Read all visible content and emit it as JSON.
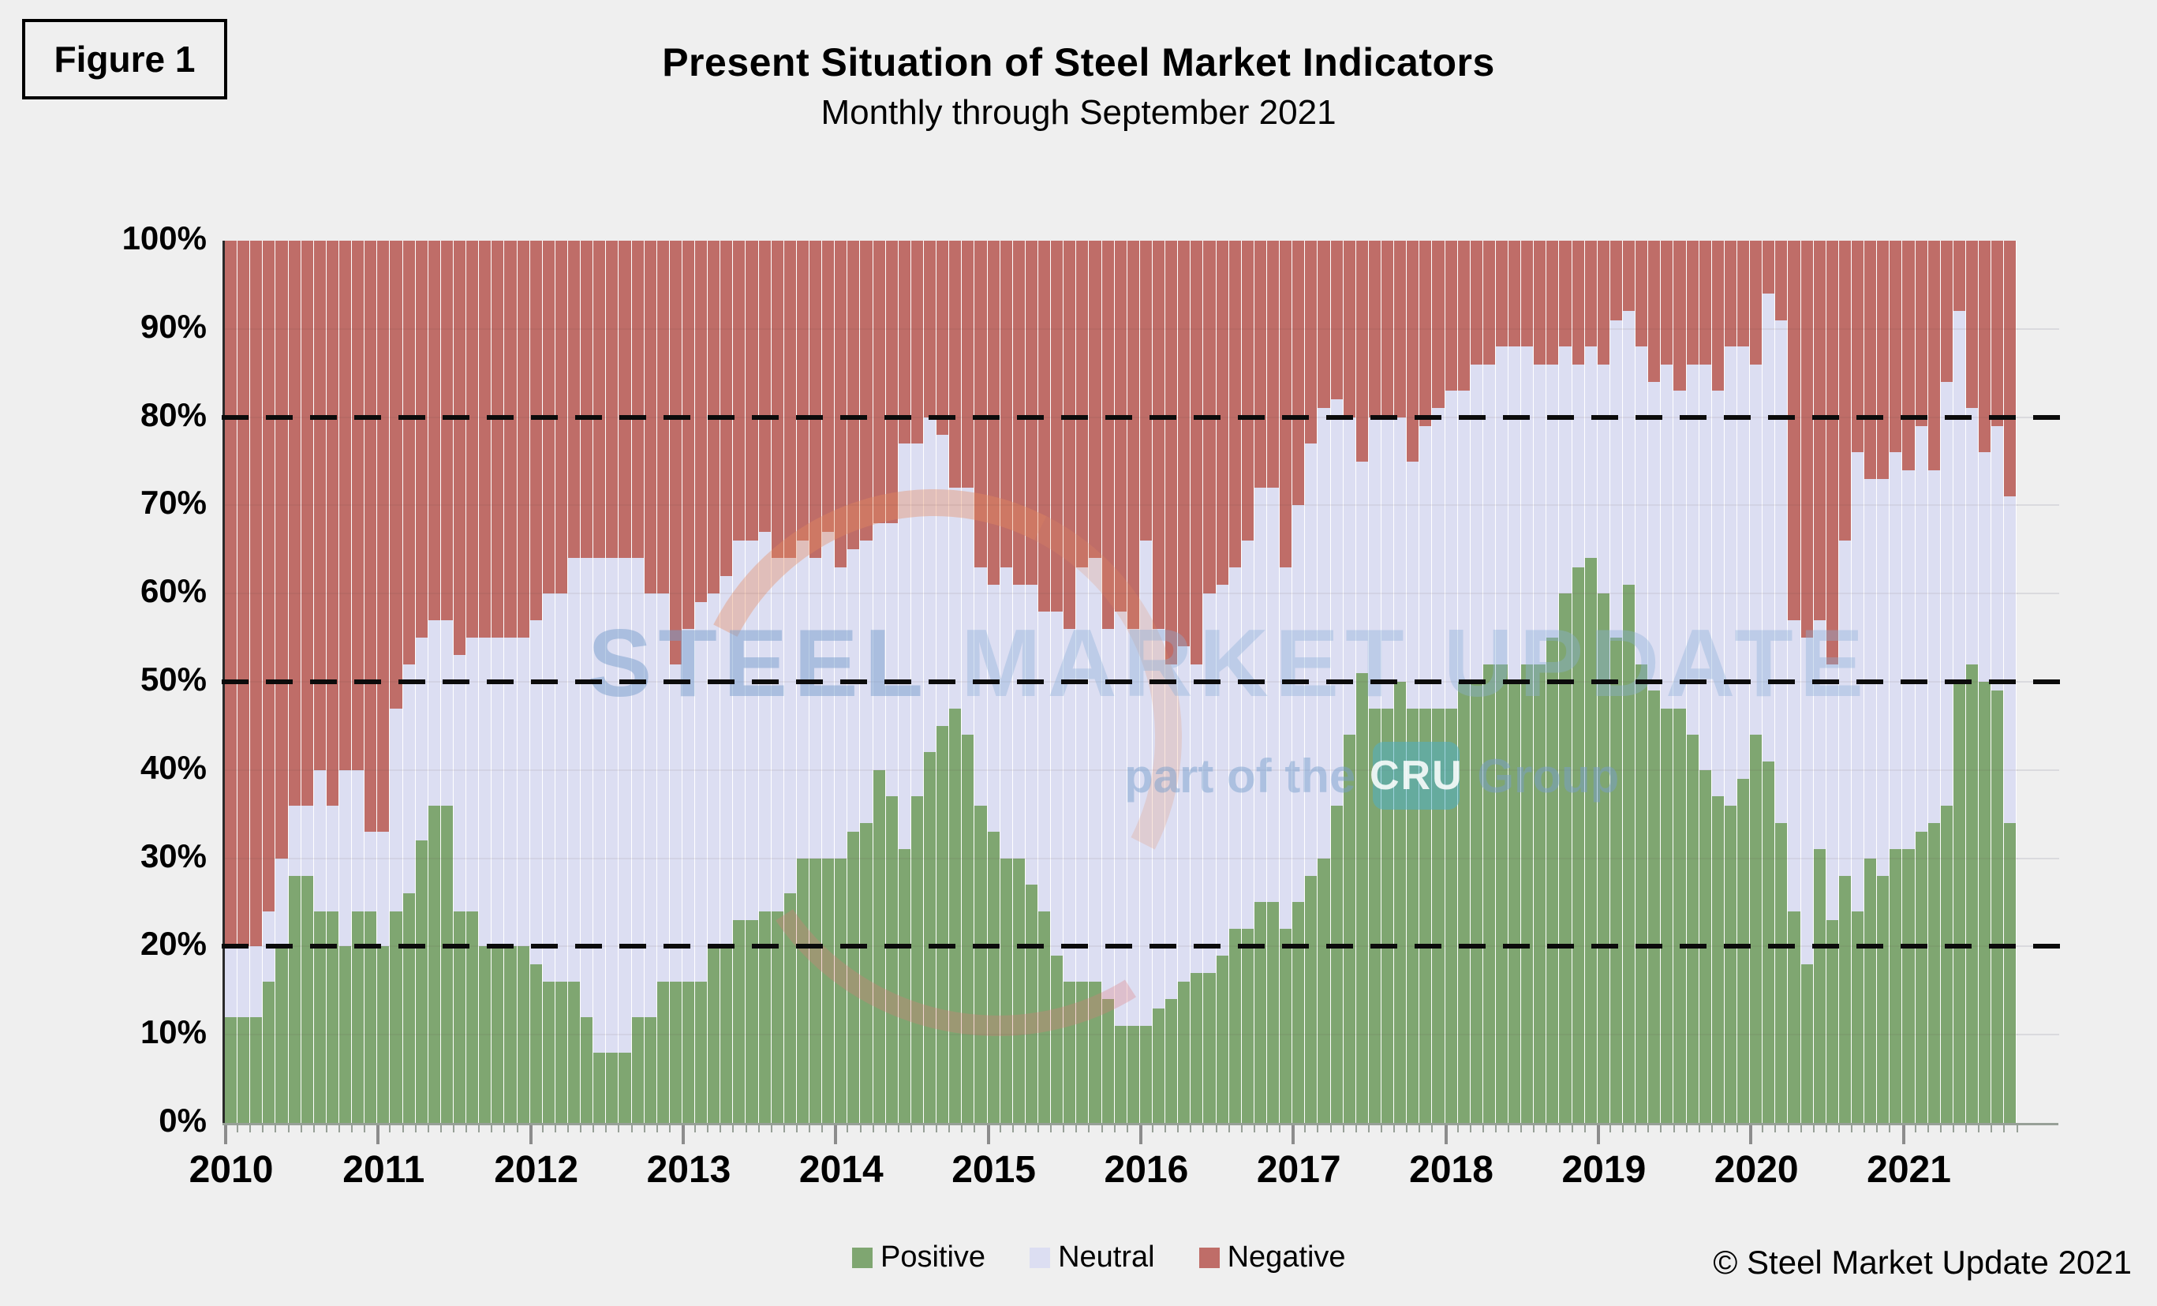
{
  "figure_label": "Figure 1",
  "title": "Present Situation of Steel Market Indicators",
  "subtitle": "Monthly through September 2021",
  "copyright": "© Steel Market Update 2021",
  "watermark": {
    "line1_a": "STEEL",
    "line1_b": " MARKET UPDATE",
    "line2_prefix": "part of the",
    "line2_badge": "CRU",
    "line2_suffix": "Group"
  },
  "legend": [
    {
      "label": "Positive",
      "color": "#7fa671"
    },
    {
      "label": "Neutral",
      "color": "#dcdef2"
    },
    {
      "label": "Negative",
      "color": "#bf6d68"
    }
  ],
  "axes": {
    "y_ticks": [
      "0%",
      "10%",
      "20%",
      "30%",
      "40%",
      "50%",
      "60%",
      "70%",
      "80%",
      "90%",
      "100%"
    ],
    "x_ticks": [
      "2010",
      "2011",
      "2012",
      "2013",
      "2014",
      "2015",
      "2016",
      "2017",
      "2018",
      "2019",
      "2020",
      "2021"
    ]
  },
  "chart_data": {
    "type": "bar",
    "stacked": true,
    "stack_total": 100,
    "title": "Present Situation of Steel Market Indicators",
    "subtitle": "Monthly through September 2021",
    "ylabel": "",
    "ylim": [
      0,
      100
    ],
    "grid": "horizontal, every 10%",
    "dashed_reference_lines": [
      20,
      50,
      80
    ],
    "legend_position": "bottom",
    "categories": [
      "2010-01",
      "2010-02",
      "2010-03",
      "2010-04",
      "2010-05",
      "2010-06",
      "2010-07",
      "2010-08",
      "2010-09",
      "2010-10",
      "2010-11",
      "2010-12",
      "2011-01",
      "2011-02",
      "2011-03",
      "2011-04",
      "2011-05",
      "2011-06",
      "2011-07",
      "2011-08",
      "2011-09",
      "2011-10",
      "2011-11",
      "2011-12",
      "2012-01",
      "2012-02",
      "2012-03",
      "2012-04",
      "2012-05",
      "2012-06",
      "2012-07",
      "2012-08",
      "2012-09",
      "2012-10",
      "2012-11",
      "2012-12",
      "2013-01",
      "2013-02",
      "2013-03",
      "2013-04",
      "2013-05",
      "2013-06",
      "2013-07",
      "2013-08",
      "2013-09",
      "2013-10",
      "2013-11",
      "2013-12",
      "2014-01",
      "2014-02",
      "2014-03",
      "2014-04",
      "2014-05",
      "2014-06",
      "2014-07",
      "2014-08",
      "2014-09",
      "2014-10",
      "2014-11",
      "2014-12",
      "2015-01",
      "2015-02",
      "2015-03",
      "2015-04",
      "2015-05",
      "2015-06",
      "2015-07",
      "2015-08",
      "2015-09",
      "2015-10",
      "2015-11",
      "2015-12",
      "2016-01",
      "2016-02",
      "2016-03",
      "2016-04",
      "2016-05",
      "2016-06",
      "2016-07",
      "2016-08",
      "2016-09",
      "2016-10",
      "2016-11",
      "2016-12",
      "2017-01",
      "2017-02",
      "2017-03",
      "2017-04",
      "2017-05",
      "2017-06",
      "2017-07",
      "2017-08",
      "2017-09",
      "2017-10",
      "2017-11",
      "2017-12",
      "2018-01",
      "2018-02",
      "2018-03",
      "2018-04",
      "2018-05",
      "2018-06",
      "2018-07",
      "2018-08",
      "2018-09",
      "2018-10",
      "2018-11",
      "2018-12",
      "2019-01",
      "2019-02",
      "2019-03",
      "2019-04",
      "2019-05",
      "2019-06",
      "2019-07",
      "2019-08",
      "2019-09",
      "2019-10",
      "2019-11",
      "2019-12",
      "2020-01",
      "2020-02",
      "2020-03",
      "2020-04",
      "2020-05",
      "2020-06",
      "2020-07",
      "2020-08",
      "2020-09",
      "2020-10",
      "2020-11",
      "2020-12",
      "2021-01",
      "2021-02",
      "2021-03",
      "2021-04",
      "2021-05",
      "2021-06",
      "2021-07",
      "2021-08",
      "2021-09"
    ],
    "series": [
      {
        "name": "Positive",
        "color": "#7fa671",
        "values": [
          12,
          12,
          12,
          16,
          20,
          28,
          28,
          24,
          24,
          20,
          24,
          24,
          20,
          24,
          26,
          32,
          36,
          36,
          24,
          24,
          20,
          20,
          20,
          20,
          18,
          16,
          16,
          16,
          12,
          8,
          8,
          8,
          12,
          12,
          16,
          16,
          16,
          16,
          20,
          20,
          23,
          23,
          24,
          24,
          26,
          30,
          30,
          30,
          30,
          33,
          34,
          40,
          37,
          31,
          37,
          42,
          45,
          47,
          44,
          36,
          33,
          30,
          30,
          27,
          24,
          19,
          16,
          16,
          16,
          14,
          11,
          11,
          11,
          13,
          14,
          16,
          17,
          17,
          19,
          22,
          22,
          25,
          25,
          22,
          25,
          28,
          30,
          36,
          44,
          51,
          47,
          47,
          50,
          47,
          47,
          47,
          47,
          50,
          50,
          52,
          52,
          50,
          52,
          52,
          55,
          60,
          63,
          64,
          60,
          55,
          61,
          52,
          49,
          47,
          47,
          44,
          40,
          37,
          36,
          39,
          44,
          41,
          34,
          24,
          18,
          31,
          23,
          28,
          24,
          30,
          28,
          31,
          31,
          33,
          34,
          36,
          50,
          52,
          50,
          49,
          34
        ]
      },
      {
        "name": "Neutral",
        "color": "#dcdef2",
        "values": [
          8,
          8,
          8,
          8,
          10,
          8,
          8,
          16,
          12,
          20,
          16,
          9,
          13,
          23,
          26,
          23,
          21,
          21,
          29,
          31,
          35,
          35,
          35,
          35,
          39,
          44,
          44,
          48,
          52,
          56,
          56,
          56,
          52,
          48,
          44,
          36,
          40,
          43,
          40,
          42,
          43,
          43,
          43,
          40,
          38,
          36,
          34,
          37,
          33,
          32,
          32,
          28,
          31,
          46,
          40,
          38,
          33,
          25,
          28,
          27,
          28,
          33,
          31,
          34,
          34,
          39,
          40,
          47,
          48,
          42,
          47,
          45,
          55,
          43,
          38,
          38,
          35,
          43,
          42,
          41,
          44,
          47,
          47,
          41,
          45,
          49,
          51,
          46,
          36,
          24,
          33,
          33,
          30,
          28,
          32,
          34,
          36,
          33,
          36,
          34,
          36,
          38,
          36,
          34,
          31,
          28,
          23,
          24,
          26,
          36,
          31,
          36,
          35,
          39,
          36,
          42,
          46,
          46,
          52,
          49,
          42,
          53,
          57,
          33,
          37,
          26,
          29,
          38,
          52,
          43,
          45,
          45,
          43,
          46,
          40,
          48,
          42,
          29,
          26,
          30,
          37
        ]
      },
      {
        "name": "Negative",
        "color": "#bf6d68",
        "values": [
          80,
          80,
          80,
          76,
          70,
          64,
          64,
          60,
          64,
          60,
          60,
          67,
          67,
          53,
          48,
          45,
          43,
          43,
          47,
          45,
          45,
          45,
          45,
          45,
          43,
          40,
          40,
          36,
          36,
          36,
          36,
          36,
          36,
          40,
          40,
          48,
          44,
          41,
          40,
          38,
          34,
          34,
          33,
          36,
          36,
          34,
          36,
          33,
          37,
          35,
          34,
          32,
          32,
          23,
          23,
          20,
          22,
          28,
          28,
          37,
          39,
          37,
          39,
          39,
          42,
          42,
          44,
          37,
          36,
          44,
          42,
          44,
          34,
          44,
          48,
          46,
          48,
          40,
          39,
          37,
          34,
          28,
          28,
          37,
          30,
          23,
          19,
          18,
          20,
          25,
          20,
          20,
          20,
          25,
          21,
          19,
          17,
          17,
          14,
          14,
          12,
          12,
          12,
          14,
          14,
          12,
          14,
          12,
          14,
          9,
          8,
          12,
          16,
          14,
          17,
          14,
          14,
          17,
          12,
          12,
          14,
          6,
          9,
          43,
          45,
          43,
          48,
          34,
          24,
          27,
          27,
          24,
          26,
          21,
          26,
          16,
          8,
          19,
          24,
          21,
          29
        ]
      }
    ]
  }
}
